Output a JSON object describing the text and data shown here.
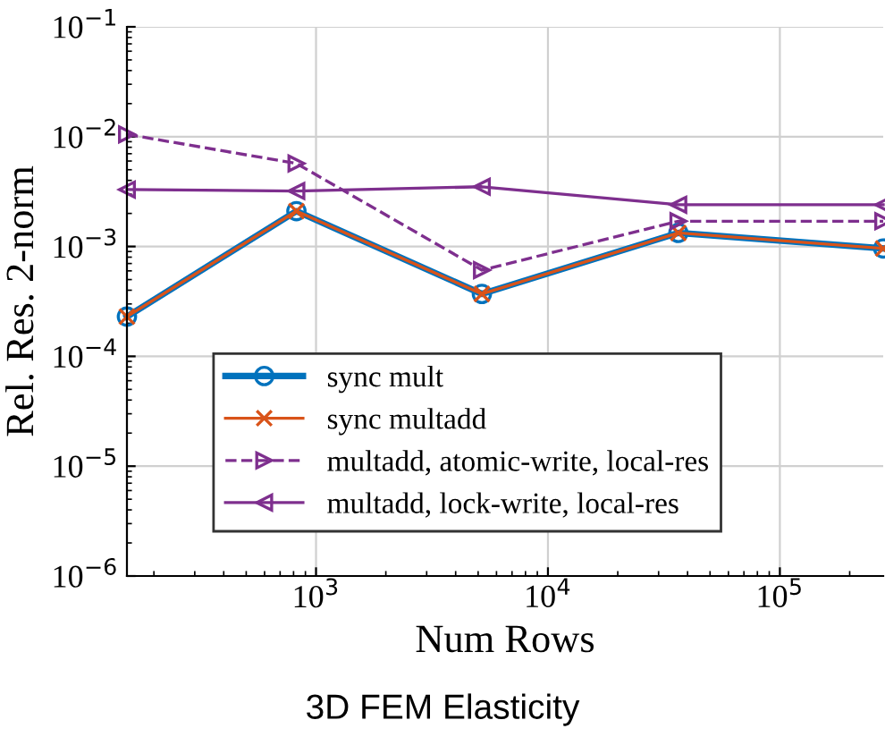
{
  "chart_data": {
    "type": "line",
    "title": "3D FEM Elasticity",
    "xlabel": "Num Rows",
    "ylabel": "Rel. Res. 2-norm",
    "x": [
      153,
      823,
      5190,
      36500,
      279000
    ],
    "log": "xy",
    "xlim": [
      153,
      279000
    ],
    "ylim": [
      1e-06,
      0.1
    ],
    "xticks": [
      {
        "value": 1000,
        "label": "10$^{3}$"
      },
      {
        "value": 10000,
        "label": "10$^{4}$"
      },
      {
        "value": 100000,
        "label": "10$^{5}$"
      }
    ],
    "yticks": [
      {
        "value": 1e-06,
        "label": "10$^{−6}$"
      },
      {
        "value": 1e-05,
        "label": "10$^{−5}$"
      },
      {
        "value": 0.0001,
        "label": "10$^{−4}$"
      },
      {
        "value": 0.001,
        "label": "10$^{−3}$"
      },
      {
        "value": 0.01,
        "label": "10$^{−2}$"
      },
      {
        "value": 0.1,
        "label": "10$^{−1}$"
      }
    ],
    "grid": true,
    "legend": "bottom",
    "series": [
      {
        "name": "sync mult",
        "color": "#0072bd",
        "marker": "circle",
        "line_style": "solid",
        "values": [
          0.00023,
          0.0021,
          0.00037,
          0.00133,
          0.00096
        ]
      },
      {
        "name": "sync multadd",
        "color": "#d95319",
        "marker": "cross",
        "line_style": "solid",
        "values": [
          0.00023,
          0.0021,
          0.00037,
          0.00133,
          0.00096
        ]
      },
      {
        "name": "multadd, atomic-write, local-res",
        "color": "#7e2f8e",
        "marker": "triangle_right",
        "line_style": "dashed",
        "values": [
          0.0105,
          0.0057,
          0.00061,
          0.0017,
          0.0017
        ]
      },
      {
        "name": "multadd, lock-write, local-res",
        "color": "#7e2f8e",
        "marker": "triangle_left",
        "line_style": "solid",
        "values": [
          0.0033,
          0.0032,
          0.0035,
          0.0024,
          0.0024
        ]
      }
    ]
  }
}
